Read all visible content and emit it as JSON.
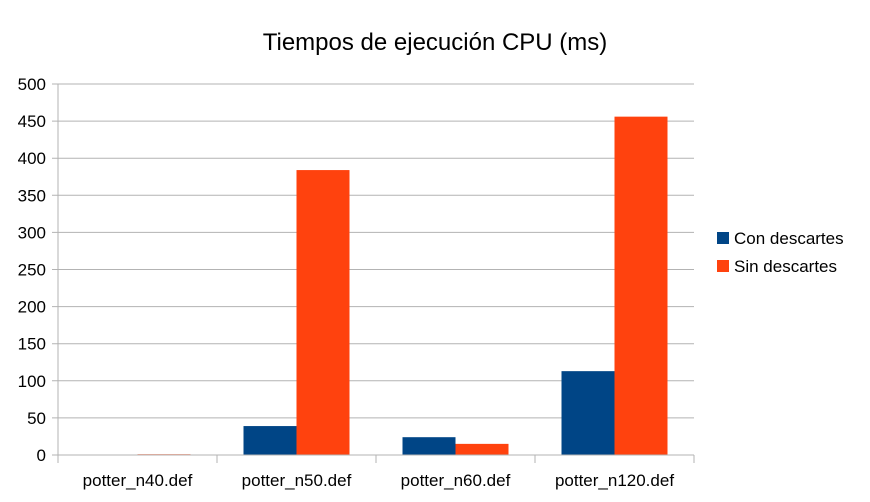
{
  "chart_data": {
    "type": "bar",
    "title": "Tiempos de ejecución CPU (ms)",
    "xlabel": "",
    "ylabel": "",
    "categories": [
      "potter_n40.def",
      "potter_n50.def",
      "potter_n60.def",
      "potter_n120.def"
    ],
    "series": [
      {
        "name": "Con descartes",
        "color": "#004586",
        "values": [
          0,
          39,
          24,
          113
        ]
      },
      {
        "name": "Sin descartes",
        "color": "#ff420e",
        "values": [
          1,
          384,
          15,
          456
        ]
      }
    ],
    "ylim": [
      0,
      500
    ],
    "yticks": [
      0,
      50,
      100,
      150,
      200,
      250,
      300,
      350,
      400,
      450,
      500
    ],
    "grid": true,
    "legend_position": "right",
    "grid_color": "#b3b3b3"
  }
}
